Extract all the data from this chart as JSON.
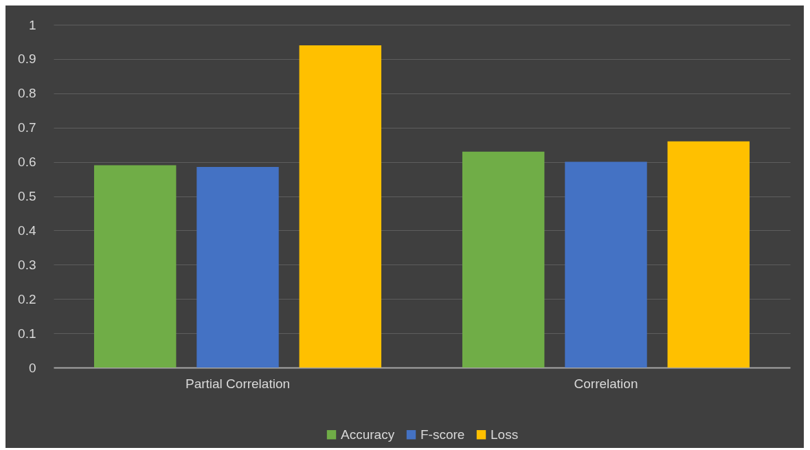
{
  "chart_data": {
    "type": "bar",
    "categories": [
      "Partial Correlation",
      "Correlation"
    ],
    "series": [
      {
        "name": "Accuracy",
        "color": "#70ad47",
        "values": [
          0.59,
          0.63
        ]
      },
      {
        "name": "F-score",
        "color": "#4472c4",
        "values": [
          0.585,
          0.6
        ]
      },
      {
        "name": "Loss",
        "color": "#ffc000",
        "values": [
          0.94,
          0.66
        ]
      }
    ],
    "ylim": [
      0,
      1
    ],
    "yticks": [
      0,
      0.1,
      0.2,
      0.3,
      0.4,
      0.5,
      0.6,
      0.7,
      0.8,
      0.9,
      1
    ],
    "grid": "y",
    "legend": "bottom"
  }
}
